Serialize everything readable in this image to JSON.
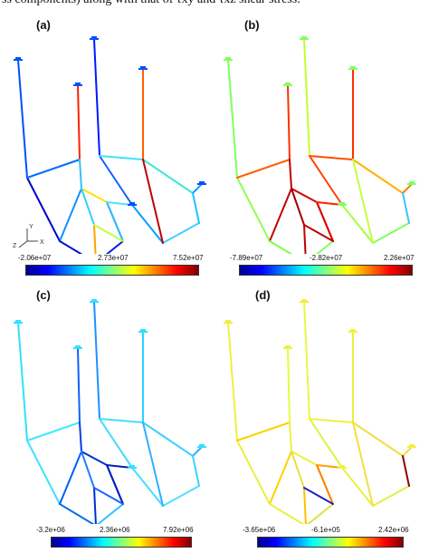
{
  "caption_fragment": "ss components) along with that of τxy and τxz shear stress.",
  "panels": [
    {
      "label": "(a)",
      "colorbar": {
        "min": "-2.06e+07",
        "mid": "2.73e+07",
        "max": "7.52e+07"
      },
      "palette": "jet",
      "coloring": "a"
    },
    {
      "label": "(b)",
      "colorbar": {
        "min": "-7.89e+07",
        "mid": "-2.82e+07",
        "max": "2.26e+07"
      },
      "palette": "jet",
      "coloring": "b"
    },
    {
      "label": "(c)",
      "colorbar": {
        "min": "-3.2e+06",
        "mid": "2.36e+06",
        "max": "7.92e+06"
      },
      "palette": "jet",
      "coloring": "c"
    },
    {
      "label": "(d)",
      "colorbar": {
        "min": "-3.65e+06",
        "mid": "-6.1e+05",
        "max": "2.42e+06"
      },
      "palette": "jet",
      "coloring": "d"
    }
  ],
  "axes_triad": {
    "x": "X",
    "y": "Y",
    "z": "Z"
  },
  "colors": {
    "jet": [
      "#00008f",
      "#0000ff",
      "#0080ff",
      "#00ffff",
      "#80ff80",
      "#ffff00",
      "#ff8000",
      "#ff0000",
      "#800000"
    ]
  }
}
